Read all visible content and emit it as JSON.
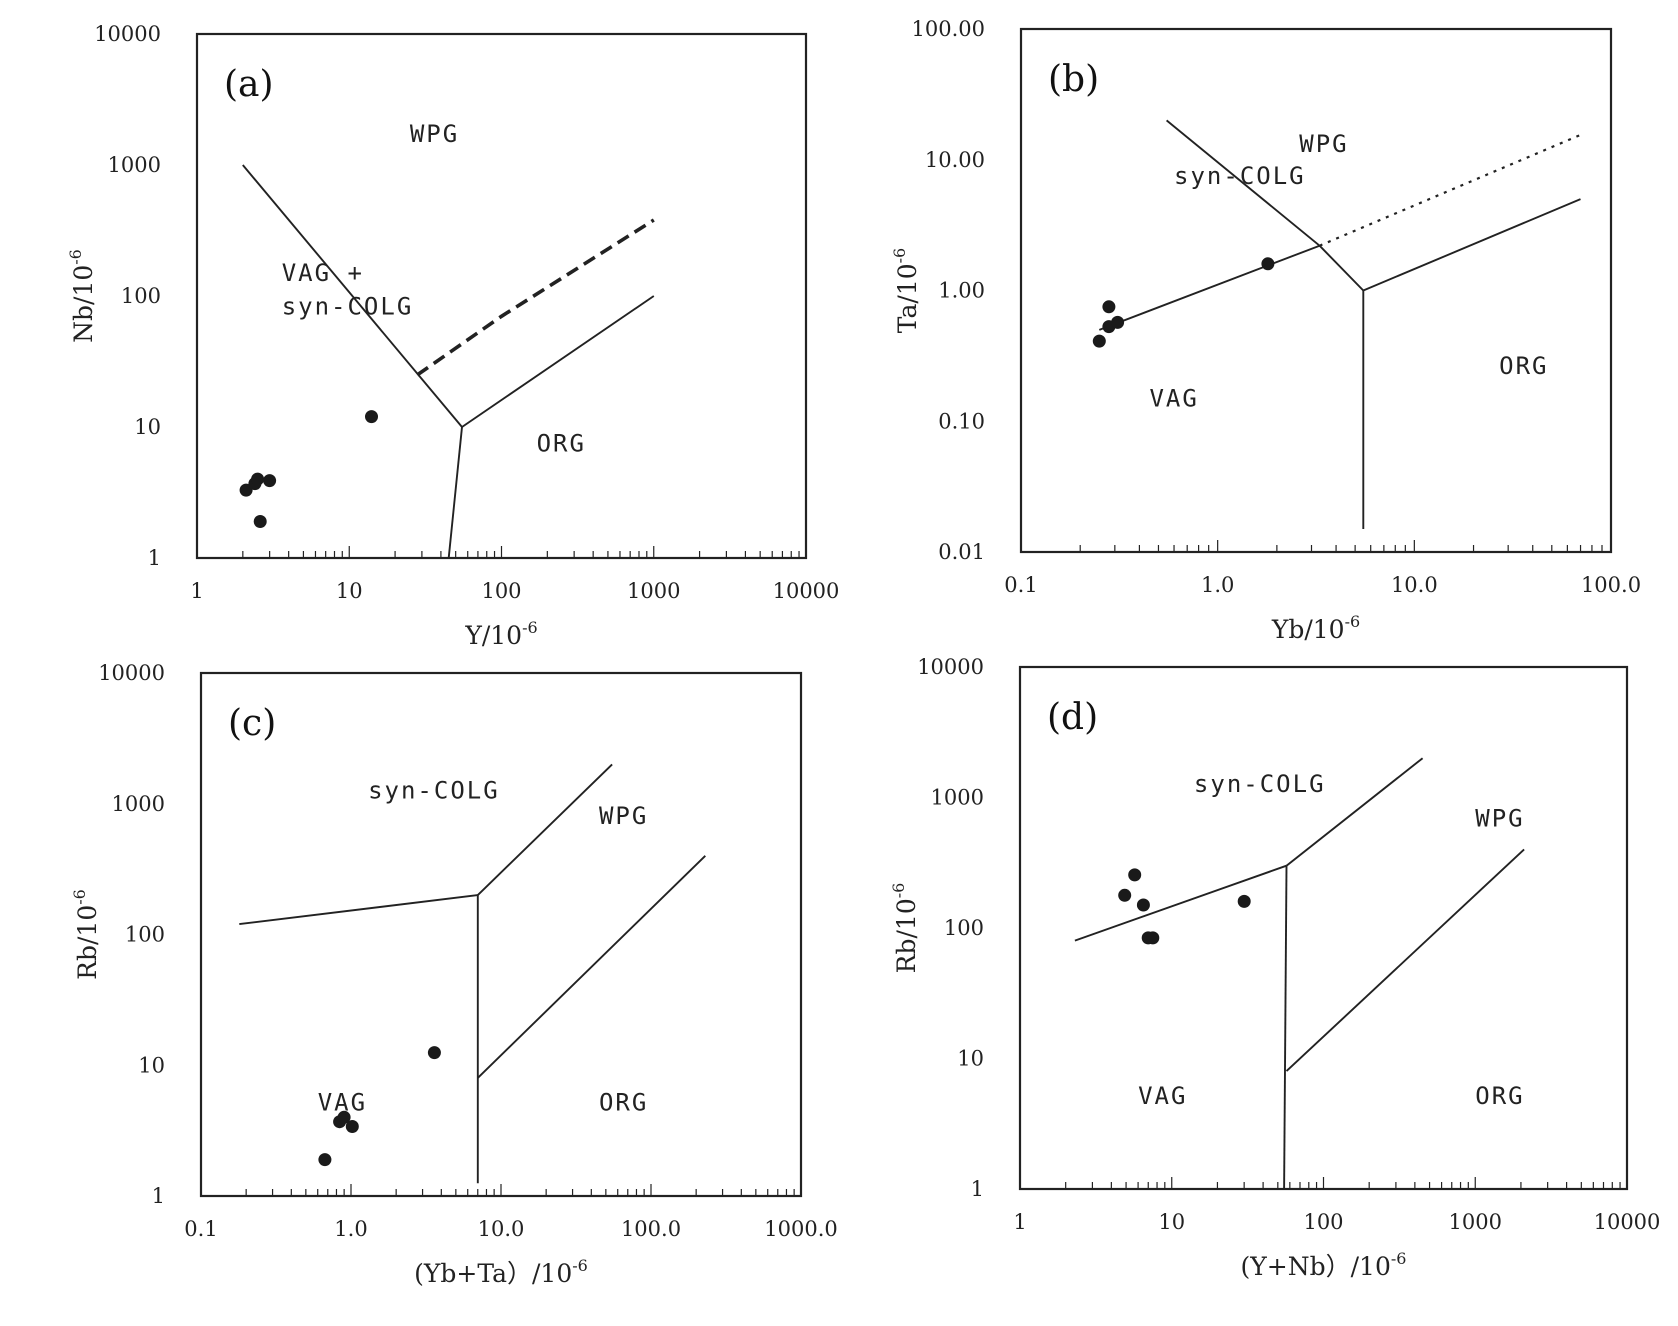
{
  "chart_data": [
    {
      "id": "a",
      "type": "scatter",
      "panel_label": "(a)",
      "xscale": "log",
      "yscale": "log",
      "xlim": [
        1,
        10000
      ],
      "ylim": [
        1,
        10000
      ],
      "xticks": [
        "1",
        "10",
        "100",
        "1000",
        "10000"
      ],
      "yticks": [
        "1",
        "10",
        "100",
        "1000",
        "10000"
      ],
      "xlabel": "Y/10",
      "xlabel_sup": "-6",
      "ylabel": "Nb/10",
      "ylabel_sup": "-6",
      "regions": [
        "WPG",
        "VAG +",
        "syn-COLG",
        "ORG"
      ],
      "points": [
        [
          2.1,
          3.3
        ],
        [
          2.4,
          3.7
        ],
        [
          2.5,
          4.0
        ],
        [
          3.0,
          3.9
        ],
        [
          2.6,
          1.9
        ],
        [
          14,
          12
        ]
      ]
    },
    {
      "id": "b",
      "type": "scatter",
      "panel_label": "(b)",
      "xscale": "log",
      "yscale": "log",
      "xlim": [
        0.1,
        100
      ],
      "ylim": [
        0.01,
        100
      ],
      "xticks": [
        "0.1",
        "1.0",
        "10.0",
        "100.0"
      ],
      "yticks": [
        "0.01",
        "0.10",
        "1.00",
        "10.00",
        "100.00"
      ],
      "xlabel": "Yb/10",
      "xlabel_sup": "-6",
      "ylabel": "Ta/10",
      "ylabel_sup": "-6",
      "regions": [
        "WPG",
        "syn-COLG",
        "VAG",
        "ORG"
      ],
      "points": [
        [
          0.25,
          0.41
        ],
        [
          0.28,
          0.53
        ],
        [
          0.28,
          0.75
        ],
        [
          0.31,
          0.57
        ],
        [
          1.8,
          1.6
        ]
      ]
    },
    {
      "id": "c",
      "type": "scatter",
      "panel_label": "(c)",
      "xscale": "log",
      "yscale": "log",
      "xlim": [
        0.1,
        1000
      ],
      "ylim": [
        1,
        10000
      ],
      "xticks": [
        "0.1",
        "1.0",
        "10.0",
        "100.0",
        "1000.0"
      ],
      "yticks": [
        "1",
        "10",
        "100",
        "1000",
        "10000"
      ],
      "xlabel": "(Yb+Ta）/10",
      "xlabel_sup": "-6",
      "ylabel": "Rb/10",
      "ylabel_sup": "-6",
      "regions": [
        "syn-COLG",
        "WPG",
        "VAG",
        "ORG"
      ],
      "points": [
        [
          0.84,
          3.7
        ],
        [
          0.9,
          4.0
        ],
        [
          1.02,
          3.4
        ],
        [
          0.67,
          1.9
        ],
        [
          3.6,
          12.5
        ]
      ]
    },
    {
      "id": "d",
      "type": "scatter",
      "panel_label": "(d)",
      "xscale": "log",
      "yscale": "log",
      "xlim": [
        1,
        10000
      ],
      "ylim": [
        1,
        10000
      ],
      "xticks": [
        "1",
        "10",
        "100",
        "1000",
        "10000"
      ],
      "yticks": [
        "1",
        "10",
        "100",
        "1000",
        "10000"
      ],
      "xlabel": "(Y+Nb）/10",
      "xlabel_sup": "-6",
      "ylabel": "Rb/10",
      "ylabel_sup": "-6",
      "regions": [
        "syn-COLG",
        "WPG",
        "VAG",
        "ORG"
      ],
      "points": [
        [
          5.7,
          255
        ],
        [
          4.9,
          178
        ],
        [
          6.5,
          150
        ],
        [
          7.0,
          84
        ],
        [
          7.5,
          84
        ],
        [
          30,
          160
        ]
      ]
    }
  ]
}
